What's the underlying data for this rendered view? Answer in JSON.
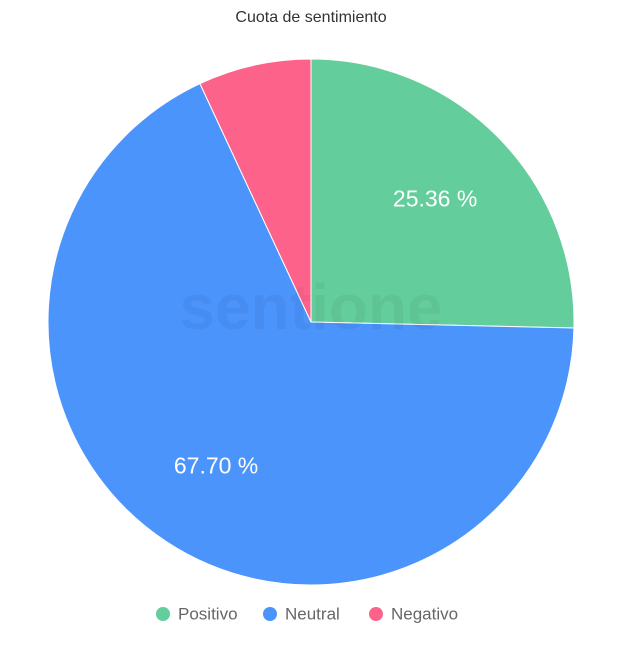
{
  "chart_data": {
    "type": "pie",
    "title": "Cuota de sentimiento",
    "watermark": "sentione",
    "categories": [
      "Positivo",
      "Neutral",
      "Negativo"
    ],
    "values": [
      25.36,
      67.7,
      6.94
    ],
    "value_labels": [
      "25.36 %",
      "67.70 %",
      null
    ],
    "colors": [
      "#63cd9b",
      "#4b94fc",
      "#fd638a"
    ],
    "legend": "bottom"
  }
}
